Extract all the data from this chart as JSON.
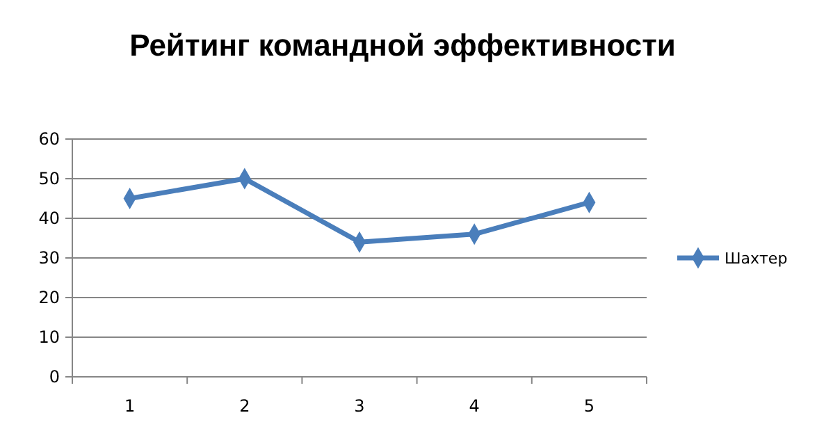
{
  "chart_data": {
    "type": "line",
    "title": "Рейтинг командной эффективности",
    "categories": [
      "1",
      "2",
      "3",
      "4",
      "5"
    ],
    "series": [
      {
        "name": "Шахтер",
        "color": "#4a7ebb",
        "values": [
          45,
          50,
          34,
          36,
          44
        ]
      }
    ],
    "ylim": [
      0,
      60
    ],
    "yticks": [
      0,
      10,
      20,
      30,
      40,
      50,
      60
    ],
    "grid": "y",
    "legend": "right",
    "marker": "diamond",
    "line_style": "solid"
  }
}
